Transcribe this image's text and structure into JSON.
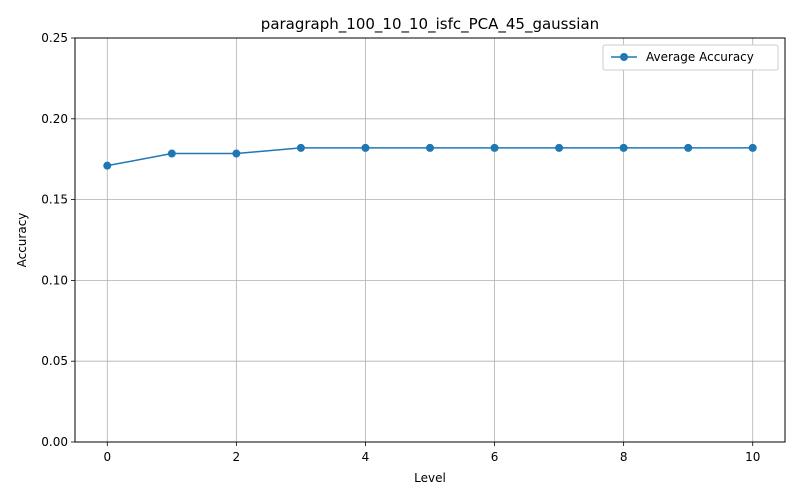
{
  "chart_data": {
    "type": "line",
    "title": "paragraph_100_10_10_isfc_PCA_45_gaussian",
    "xlabel": "Level",
    "ylabel": "Accuracy",
    "x": [
      0,
      1,
      2,
      3,
      4,
      5,
      6,
      7,
      8,
      9,
      10
    ],
    "xlim": [
      -0.5,
      10.5
    ],
    "ylim": [
      0,
      0.25
    ],
    "x_ticks": [
      0,
      2,
      4,
      6,
      8,
      10
    ],
    "x_tick_labels": [
      "0",
      "2",
      "4",
      "6",
      "8",
      "10"
    ],
    "y_ticks": [
      0,
      0.05,
      0.1,
      0.15,
      0.2,
      0.25
    ],
    "y_tick_labels": [
      "0.00",
      "0.05",
      "0.10",
      "0.15",
      "0.20",
      "0.25"
    ],
    "grid": true,
    "legend_position": "top-right",
    "series": [
      {
        "name": "Average Accuracy",
        "color": "#1f77b4",
        "marker": "circle",
        "values": [
          0.171,
          0.1785,
          0.1785,
          0.182,
          0.182,
          0.182,
          0.182,
          0.182,
          0.182,
          0.182,
          0.182
        ]
      }
    ]
  }
}
